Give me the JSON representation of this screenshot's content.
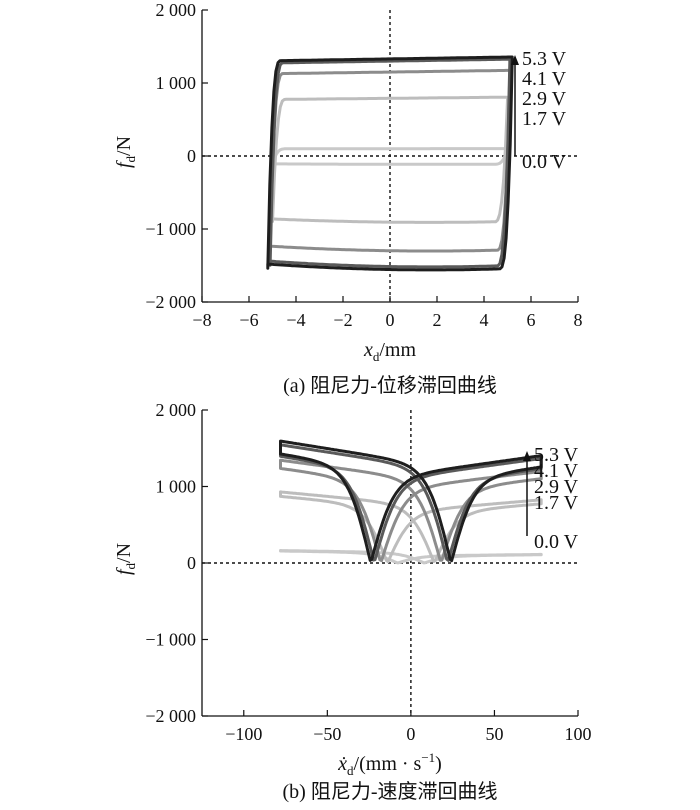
{
  "chart_data": [
    {
      "type": "line",
      "subtype": "hysteresis-loop",
      "caption": "(a) 阻尼力-位移滞回曲线",
      "xlabel": {
        "var": "x",
        "sub": "d",
        "unit": "/mm"
      },
      "ylabel": {
        "var": "f",
        "sub": "d",
        "unit": "/N"
      },
      "xlim": [
        -8,
        8
      ],
      "ylim": [
        -2000,
        2000
      ],
      "xticks": [
        -8,
        -6,
        -4,
        -2,
        0,
        2,
        4,
        6,
        8
      ],
      "xtick_labels": [
        "−8",
        "−6",
        "−4",
        "−2",
        "0",
        "2",
        "4",
        "6",
        "8"
      ],
      "yticks": [
        -2000,
        -1000,
        0,
        1000,
        2000
      ],
      "ytick_labels": [
        "−2 000",
        "−1 000",
        "0",
        "1 000",
        "2 000"
      ],
      "zero_lines": true,
      "arrow": "up",
      "series": [
        {
          "name": "0.0 V",
          "color": "#c9c9c9",
          "amp": 5.0,
          "upper": 100,
          "lower": -110
        },
        {
          "name": "1.7 V",
          "color": "#bdbdbd",
          "amp": 5.0,
          "upper": 790,
          "lower": -880
        },
        {
          "name": "2.9 V",
          "color": "#8c8c8c",
          "amp": 5.1,
          "upper": 1150,
          "lower": -1260
        },
        {
          "name": "4.1 V",
          "color": "#5a5a5a",
          "amp": 5.1,
          "upper": 1300,
          "lower": -1470
        },
        {
          "name": "5.3 V",
          "color": "#1e1e1e",
          "amp": 5.2,
          "upper": 1330,
          "lower": -1510
        }
      ]
    },
    {
      "type": "line",
      "subtype": "hysteresis-loop",
      "caption": "(b) 阻尼力-速度滞回曲线",
      "xlabel": {
        "var": "ẋ",
        "sub": "d",
        "unit": "/(mm · s",
        "sup": "−1",
        "tail": ")"
      },
      "ylabel": {
        "var": "f",
        "sub": "d",
        "unit": "/N"
      },
      "xlim": [
        -125,
        100
      ],
      "ylim": [
        -2000,
        2000
      ],
      "xticks": [
        -100,
        -50,
        0,
        50,
        100
      ],
      "xtick_labels": [
        "−100",
        "−50",
        "0",
        "50",
        "100"
      ],
      "yticks": [
        -2000,
        -1000,
        0,
        1000,
        2000
      ],
      "ytick_labels": [
        "−2 000",
        "−1 000",
        "0",
        "1 000",
        "2 000"
      ],
      "zero_lines": true,
      "arrow": "up",
      "series": [
        {
          "name": "0.0 V",
          "color": "#c9c9c9",
          "fmax": 110,
          "fmin": -160,
          "lag": 8
        },
        {
          "name": "1.7 V",
          "color": "#bdbdbd",
          "fmax": 800,
          "fmin": -900,
          "lag": 14
        },
        {
          "name": "2.9 V",
          "color": "#8c8c8c",
          "fmax": 1150,
          "fmin": -1290,
          "lag": 18
        },
        {
          "name": "4.1 V",
          "color": "#5a5a5a",
          "fmax": 1300,
          "fmin": -1470,
          "lag": 22
        },
        {
          "name": "5.3 V",
          "color": "#1e1e1e",
          "fmax": 1330,
          "fmin": -1510,
          "lag": 24
        }
      ]
    }
  ]
}
